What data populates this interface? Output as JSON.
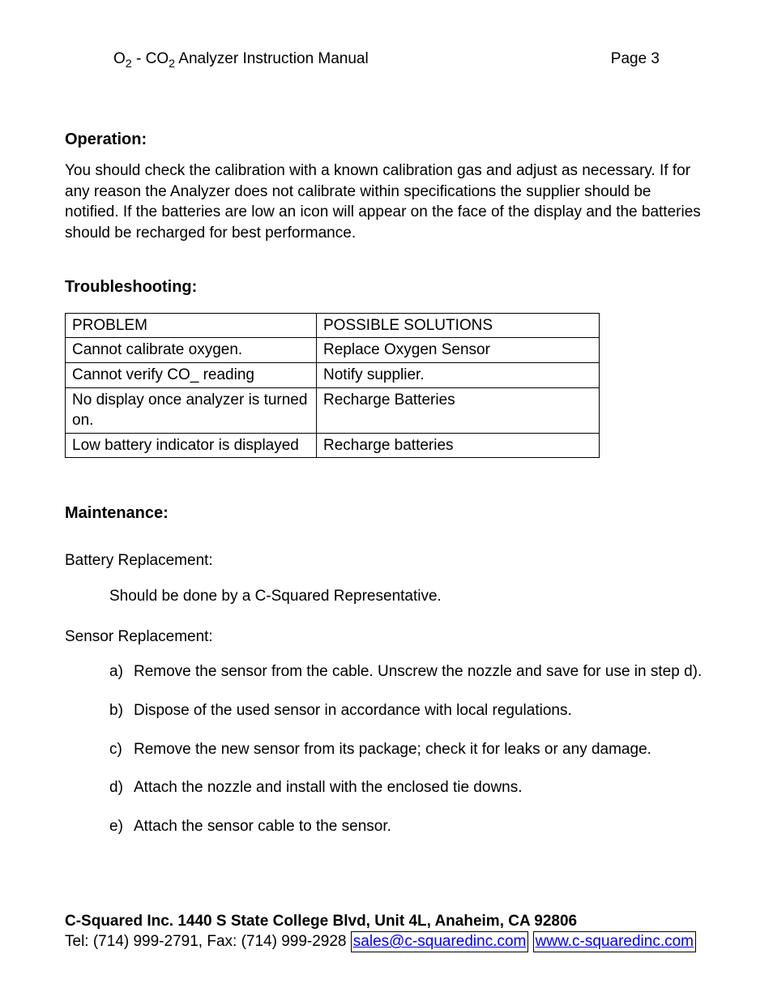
{
  "header": {
    "title_pre": "O",
    "title_sub1": "2",
    "title_mid": " - CO",
    "title_sub2": "2",
    "title_post": " Analyzer Instruction Manual",
    "page_label": "Page 3"
  },
  "operation": {
    "heading": "Operation:",
    "body": "You should check the calibration with a known calibration gas and adjust as necessary. If for any reason the Analyzer does not calibrate within specifications the supplier should be notified. If the batteries are low an icon will appear on the face of the display and the batteries should be recharged for best performance."
  },
  "troubleshooting": {
    "heading": "Troubleshooting:",
    "columns": [
      "PROBLEM",
      "POSSIBLE SOLUTIONS"
    ],
    "rows": [
      [
        "Cannot calibrate oxygen.",
        "Replace Oxygen Sensor"
      ],
      [
        "Cannot verify CO_ reading",
        "Notify supplier."
      ],
      [
        "No display once analyzer is turned on.",
        "Recharge Batteries"
      ],
      [
        "Low battery indicator is displayed",
        "Recharge batteries"
      ]
    ]
  },
  "maintenance": {
    "heading": "Maintenance:",
    "battery_label": "Battery Replacement:",
    "battery_body": "Should be done by a C-Squared Representative.",
    "sensor_label": "Sensor Replacement:",
    "sensor_steps": [
      "Remove the sensor from the cable. Unscrew the nozzle and save for use in step d).",
      "Dispose of the used sensor in accordance with local regulations.",
      "Remove the new sensor from its package; check it for leaks or any damage.",
      "Attach the nozzle and install with the enclosed tie downs.",
      "Attach the sensor cable to the sensor."
    ],
    "step_markers": [
      "a)",
      "b)",
      "c)",
      "d)",
      "e)"
    ]
  },
  "footer": {
    "address": "C-Squared Inc. 1440 S State College Blvd, Unit 4L, Anaheim, CA  92806",
    "contact_pre": "Tel: (714) 999-2791, Fax: (714) 999-2928 ",
    "email": "sales@c-squaredinc.com",
    "contact_mid": " ",
    "website": "www.c-squaredinc.com"
  },
  "colors": {
    "text": "#000000",
    "link": "#0000ee",
    "background": "#ffffff",
    "border": "#000000"
  },
  "typography": {
    "body_fontsize": 19,
    "heading_fontsize": 20,
    "font_family": "Arial"
  }
}
